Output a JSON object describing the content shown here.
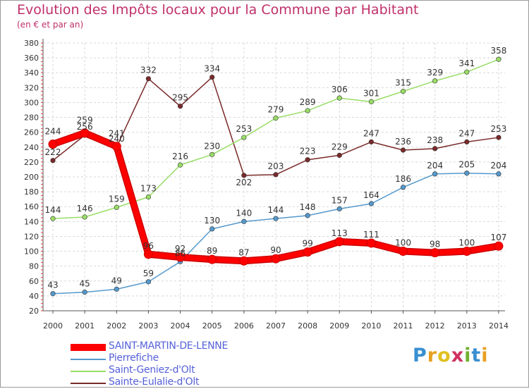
{
  "title": "Evolution des Impôts locaux pour la Commune par Habitant",
  "subtitle": "(en € et par an)",
  "logo": {
    "text": "Proxiti",
    "letters": [
      {
        "ch": "P",
        "color": "#3a8fd0"
      },
      {
        "ch": "r",
        "color": "#e8a020"
      },
      {
        "ch": "o",
        "color": "#e0c020"
      },
      {
        "ch": "x",
        "color": "#d03060"
      },
      {
        "ch": "i",
        "color": "#70b030"
      },
      {
        "ch": "t",
        "color": "#3a8fd0"
      },
      {
        "ch": "i",
        "color": "#e8a020"
      }
    ]
  },
  "chart_data": {
    "type": "line",
    "title": "Evolution des Impôts locaux pour la Commune par Habitant",
    "ylabel": "(en € et par an)",
    "xlabel": "",
    "x": [
      "2000",
      "2001",
      "2002",
      "2003",
      "2004",
      "2005",
      "2006",
      "2007",
      "2008",
      "2009",
      "2010",
      "2011",
      "2012",
      "2013",
      "2014"
    ],
    "ylim": [
      20,
      380
    ],
    "yticks": [
      "20",
      "40",
      "60",
      "80",
      "100",
      "120",
      "140",
      "160",
      "180",
      "200",
      "220",
      "240",
      "260",
      "280",
      "300",
      "320",
      "340",
      "360",
      "380"
    ],
    "grid": true,
    "legend_position": "bottom-left",
    "series": [
      {
        "name": "SAINT-MARTIN-DE-LENNE",
        "color": "#ff0000",
        "values": [
          244,
          259,
          241,
          96,
          92,
          89,
          87,
          90,
          99,
          113,
          111,
          100,
          98,
          100,
          107
        ],
        "labels": [
          "244",
          "259",
          "241",
          "96",
          "92",
          "89",
          "87",
          "90",
          "99",
          "113",
          "111",
          "100",
          "98",
          "100",
          "107"
        ]
      },
      {
        "name": "Pierrefiche",
        "color": "#5599cc",
        "values": [
          43,
          45,
          49,
          59,
          86,
          130,
          140,
          144,
          148,
          157,
          164,
          186,
          204,
          205,
          204
        ],
        "labels": [
          "43",
          "45",
          "49",
          "59",
          "86",
          "130",
          "140",
          "144",
          "148",
          "157",
          "164",
          "186",
          "204",
          "205",
          "204"
        ]
      },
      {
        "name": "Saint-Geniez-d'Olt",
        "color": "#99dd66",
        "values": [
          144,
          146,
          159,
          173,
          216,
          230,
          253,
          279,
          289,
          306,
          301,
          315,
          329,
          341,
          358
        ],
        "labels": [
          "144",
          "146",
          "159",
          "173",
          "216",
          "230",
          "253",
          "279",
          "289",
          "306",
          "301",
          "315",
          "329",
          "341",
          "358"
        ]
      },
      {
        "name": "Sainte-Eulalie-d'Olt",
        "color": "#7a2a2a",
        "values": [
          222,
          256,
          240,
          332,
          295,
          334,
          202,
          203,
          223,
          229,
          247,
          236,
          238,
          247,
          253
        ],
        "labels": [
          "222",
          "256",
          "240",
          "332",
          "295",
          "334",
          "202",
          "203",
          "223",
          "229",
          "247",
          "236",
          "238",
          "247",
          "253"
        ]
      }
    ]
  }
}
